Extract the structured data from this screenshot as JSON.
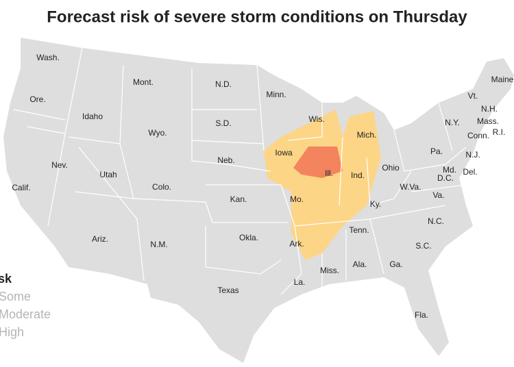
{
  "title": "Forecast risk of severe storm conditions on Thursday",
  "legend": {
    "title": "sk",
    "items": [
      {
        "label": "Some",
        "color": "#fdd587"
      },
      {
        "label": "Moderate",
        "color": "#f3845e"
      },
      {
        "label": "High",
        "color": "#c9302c"
      }
    ]
  },
  "states": [
    "Wash.",
    "Mont.",
    "N.D.",
    "Minn.",
    "Maine",
    "Ore.",
    "Vt.",
    "N.H.",
    "Idaho",
    "Wis.",
    "N.Y.",
    "Mass.",
    "S.D.",
    "Wyo.",
    "Mich.",
    "Conn.",
    "R.I.",
    "Iowa",
    "Pa.",
    "N.J.",
    "Neb.",
    "Nev.",
    "Ohio",
    "Md.",
    "Del.",
    "Utah",
    "Ill.",
    "Ind.",
    "D.C.",
    "Calif.",
    "Colo.",
    "W.Va.",
    "Va.",
    "Kan.",
    "Mo.",
    "Ky.",
    "N.C.",
    "Tenn.",
    "Ariz.",
    "Okla.",
    "N.M.",
    "Ark.",
    "S.C.",
    "Ala.",
    "Ga.",
    "Miss.",
    "Texas",
    "La.",
    "Fla."
  ]
}
